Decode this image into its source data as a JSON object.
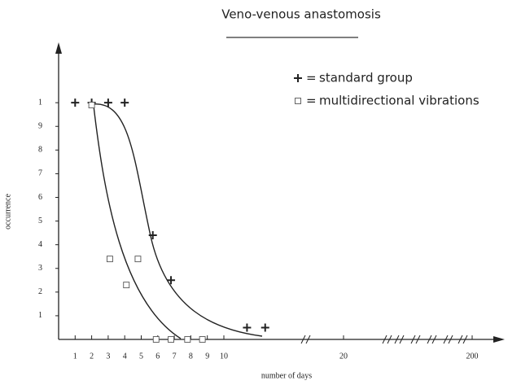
{
  "chart_data": {
    "type": "scatter",
    "title": "Veno-venous anastomosis",
    "x_label": "number of days",
    "y_label": "occurrence",
    "legend_separator": "=",
    "xlim": [
      0,
      200
    ],
    "ylim": [
      0,
      1.2
    ],
    "xticks": [
      1,
      2,
      3,
      4,
      5,
      6,
      7,
      8,
      9,
      10,
      20,
      200
    ],
    "yticks": [
      {
        "value": 0.1,
        "label": "1"
      },
      {
        "value": 0.2,
        "label": "2"
      },
      {
        "value": 0.3,
        "label": "3"
      },
      {
        "value": 0.4,
        "label": "4"
      },
      {
        "value": 0.5,
        "label": "5"
      },
      {
        "value": 0.6,
        "label": "6"
      },
      {
        "value": 0.7,
        "label": "7"
      },
      {
        "value": 0.8,
        "label": "8"
      },
      {
        "value": 0.9,
        "label": "9"
      },
      1
    ],
    "series": [
      {
        "name": "standard group",
        "marker": "plus",
        "color": "#222",
        "x": [
          1,
          2,
          3,
          4,
          5.7,
          6.8,
          11.4,
          12.5
        ],
        "values": [
          1,
          1,
          1,
          1,
          0.44,
          0.25,
          0.05,
          0.05
        ]
      },
      {
        "name": "multidirectional vibrations",
        "marker": "square",
        "color": "#555",
        "x": [
          2,
          3.1,
          4.1,
          4.8,
          5.9,
          6.8,
          7.8,
          8.7
        ],
        "values": [
          0.99,
          0.34,
          0.23,
          0.34,
          0,
          0,
          0,
          0
        ]
      }
    ]
  }
}
